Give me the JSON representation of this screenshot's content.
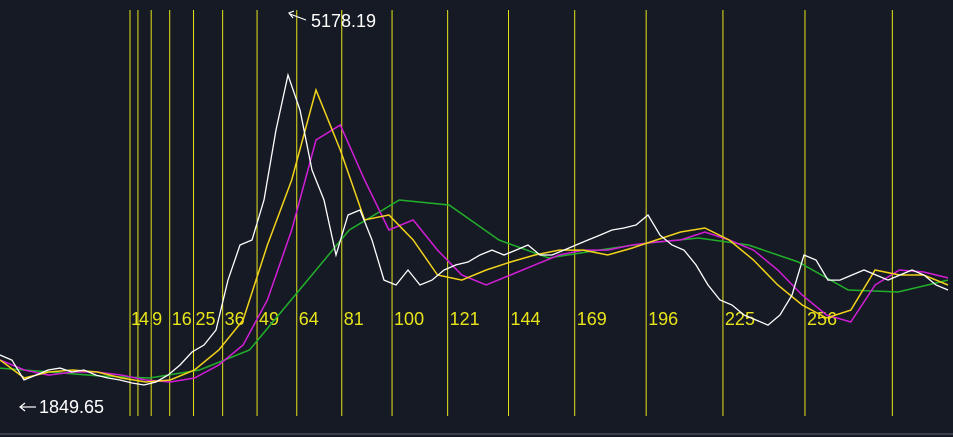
{
  "chart_data": {
    "type": "line",
    "high": 5178.19,
    "low": 1849.65,
    "series": [
      {
        "color": "#ffffff",
        "values": [
          2276,
          2233,
          2063,
          2105,
          2148,
          2165,
          2131,
          2148,
          2105,
          2080,
          2063,
          2037,
          2020,
          2046,
          2105,
          2191,
          2302,
          2362,
          2490,
          2916,
          3215,
          3258,
          3599,
          4197,
          4666,
          4367,
          3855,
          3599,
          3130,
          3471,
          3514,
          3258,
          2916,
          2874,
          3002,
          2874,
          2916,
          3002,
          3045,
          3070,
          3130,
          3172,
          3130,
          3172,
          3215,
          3130,
          3130,
          3172,
          3215,
          3258,
          3300,
          3343,
          3360,
          3386,
          3471,
          3300,
          3215,
          3172,
          3045,
          2874,
          2746,
          2703,
          2618,
          2575,
          2532,
          2618,
          2788,
          3130,
          3087,
          2916,
          2916,
          2959,
          3002,
          2959,
          2916,
          2959,
          3002,
          2959,
          2874,
          2831
        ]
      },
      {
        "color": "#f2d21b",
        "values": [
          2234,
          2080,
          2131,
          2148,
          2131,
          2080,
          2046,
          2063,
          2148,
          2319,
          2575,
          3215,
          3770,
          4538,
          4026,
          3429,
          3471,
          3258,
          2959,
          2916,
          3002,
          3070,
          3130,
          3172,
          3172,
          3130,
          3189,
          3258,
          3326,
          3360,
          3258,
          3087,
          2874,
          2703,
          2592,
          2660,
          3002,
          2959,
          2959,
          2874
        ]
      },
      {
        "color": "#d21ed6",
        "values": [
          2234,
          2148,
          2105,
          2131,
          2131,
          2105,
          2063,
          2046,
          2080,
          2191,
          2362,
          2746,
          3343,
          4111,
          4239,
          3770,
          3343,
          3429,
          3172,
          2959,
          2874,
          2959,
          3045,
          3130,
          3172,
          3172,
          3215,
          3241,
          3258,
          3326,
          3258,
          3172,
          3002,
          2788,
          2618,
          2558,
          2874,
          3002,
          2985,
          2934
        ]
      },
      {
        "color": "#22b02a",
        "values": [
          2165,
          2131,
          2097,
          2080,
          2148,
          2319,
          2831,
          3343,
          3599,
          3557,
          3258,
          3104,
          3172,
          3232,
          3275,
          3215,
          3070,
          2831,
          2814,
          2916
        ]
      }
    ],
    "time_lines": {
      "color": "#e8e41a",
      "ticks": [
        {
          "value": 1,
          "label": "1"
        },
        {
          "value": 4,
          "label": "4"
        },
        {
          "value": 9,
          "label": "9"
        },
        {
          "value": 16,
          "label": "16"
        },
        {
          "value": 25,
          "label": "25"
        },
        {
          "value": 36,
          "label": "36"
        },
        {
          "value": 49,
          "label": "49"
        },
        {
          "value": 64,
          "label": "64"
        },
        {
          "value": 81,
          "label": "81"
        },
        {
          "value": 100,
          "label": "100"
        },
        {
          "value": 121,
          "label": "121"
        },
        {
          "value": 144,
          "label": "144"
        },
        {
          "value": 169,
          "label": "169"
        },
        {
          "value": 196,
          "label": "196"
        },
        {
          "value": 225,
          "label": "225"
        },
        {
          "value": 256,
          "label": "256"
        },
        {
          "value": 289,
          "label": null
        }
      ]
    }
  }
}
